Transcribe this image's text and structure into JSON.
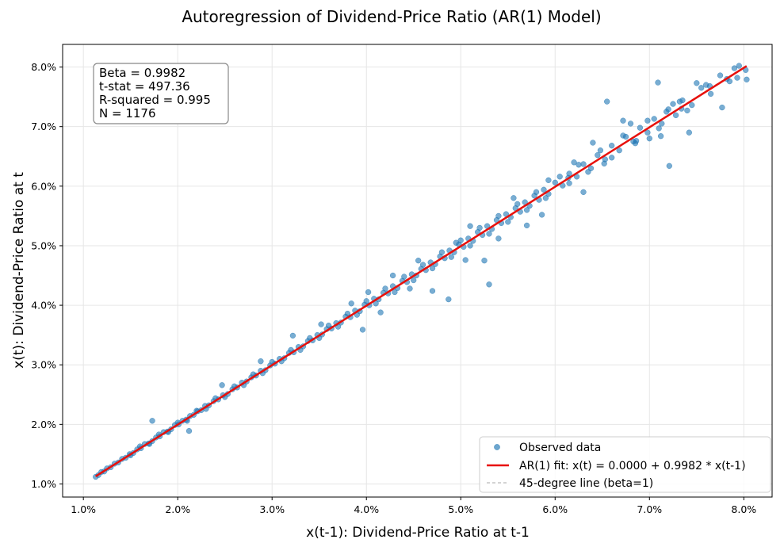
{
  "chart_data": {
    "type": "scatter",
    "title": "Autoregression of Dividend-Price Ratio (AR(1) Model)",
    "xlabel": "x(t-1): Dividend-Price Ratio at t-1",
    "ylabel": "x(t): Dividend-Price Ratio at t",
    "xlim": [
      0.0078,
      0.083
    ],
    "ylim": [
      0.0078,
      0.0838
    ],
    "xticks": [
      0.01,
      0.02,
      0.03,
      0.04,
      0.05,
      0.06,
      0.07,
      0.08
    ],
    "yticks": [
      0.01,
      0.02,
      0.03,
      0.04,
      0.05,
      0.06,
      0.07,
      0.08
    ],
    "xtick_labels": [
      "1.0%",
      "2.0%",
      "3.0%",
      "4.0%",
      "5.0%",
      "6.0%",
      "7.0%",
      "8.0%"
    ],
    "ytick_labels": [
      "1.0%",
      "2.0%",
      "3.0%",
      "4.0%",
      "5.0%",
      "6.0%",
      "7.0%",
      "8.0%"
    ],
    "grid": true,
    "stats": [
      "Beta = 0.9982",
      "t-stat = 497.36",
      "R-squared = 0.995",
      "N = 1176"
    ],
    "series": [
      {
        "name": "Observed data",
        "kind": "scatter",
        "color": "#1f77b4",
        "points": [
          [
            0.0113,
            0.0112
          ],
          [
            0.0116,
            0.0115
          ],
          [
            0.0119,
            0.012
          ],
          [
            0.0122,
            0.0121
          ],
          [
            0.0125,
            0.0126
          ],
          [
            0.0129,
            0.0128
          ],
          [
            0.0133,
            0.0134
          ],
          [
            0.0137,
            0.0136
          ],
          [
            0.0141,
            0.0142
          ],
          [
            0.0145,
            0.0144
          ],
          [
            0.0149,
            0.015
          ],
          [
            0.0153,
            0.0152
          ],
          [
            0.0157,
            0.0158
          ],
          [
            0.0161,
            0.016
          ],
          [
            0.0165,
            0.0167
          ],
          [
            0.0169,
            0.0168
          ],
          [
            0.0173,
            0.0172
          ],
          [
            0.0177,
            0.0178
          ],
          [
            0.0181,
            0.018
          ],
          [
            0.0185,
            0.0187
          ],
          [
            0.0189,
            0.0188
          ],
          [
            0.0193,
            0.0192
          ],
          [
            0.0197,
            0.0199
          ],
          [
            0.0201,
            0.02
          ],
          [
            0.0205,
            0.0206
          ],
          [
            0.0209,
            0.0208
          ],
          [
            0.0213,
            0.0214
          ],
          [
            0.0217,
            0.0216
          ],
          [
            0.0221,
            0.0222
          ],
          [
            0.0225,
            0.0224
          ],
          [
            0.0229,
            0.0231
          ],
          [
            0.0233,
            0.0232
          ],
          [
            0.0238,
            0.0239
          ],
          [
            0.0243,
            0.0242
          ],
          [
            0.0248,
            0.0249
          ],
          [
            0.0253,
            0.0251
          ],
          [
            0.0258,
            0.0259
          ],
          [
            0.0263,
            0.0262
          ],
          [
            0.0268,
            0.027
          ],
          [
            0.0273,
            0.0272
          ],
          [
            0.0278,
            0.0279
          ],
          [
            0.0283,
            0.0282
          ],
          [
            0.0288,
            0.029
          ],
          [
            0.0293,
            0.0291
          ],
          [
            0.0298,
            0.0299
          ],
          [
            0.0303,
            0.0302
          ],
          [
            0.0308,
            0.031
          ],
          [
            0.0313,
            0.0311
          ],
          [
            0.0318,
            0.032
          ],
          [
            0.0323,
            0.0321
          ],
          [
            0.0328,
            0.033
          ],
          [
            0.0333,
            0.0331
          ],
          [
            0.0338,
            0.034
          ],
          [
            0.0343,
            0.0341
          ],
          [
            0.0348,
            0.035
          ],
          [
            0.0353,
            0.0351
          ],
          [
            0.0358,
            0.036
          ],
          [
            0.0363,
            0.0361
          ],
          [
            0.0368,
            0.037
          ],
          [
            0.0373,
            0.0371
          ],
          [
            0.0378,
            0.0381
          ],
          [
            0.0383,
            0.038
          ],
          [
            0.0388,
            0.0391
          ],
          [
            0.0393,
            0.039
          ],
          [
            0.0398,
            0.0401
          ],
          [
            0.0403,
            0.04
          ],
          [
            0.0408,
            0.0411
          ],
          [
            0.0413,
            0.041
          ],
          [
            0.0418,
            0.0421
          ],
          [
            0.0423,
            0.042
          ],
          [
            0.0428,
            0.0432
          ],
          [
            0.0433,
            0.0429
          ],
          [
            0.0438,
            0.0441
          ],
          [
            0.0443,
            0.0439
          ],
          [
            0.0448,
            0.0452
          ],
          [
            0.0453,
            0.045
          ],
          [
            0.0458,
            0.0461
          ],
          [
            0.0463,
            0.0459
          ],
          [
            0.0468,
            0.0472
          ],
          [
            0.0473,
            0.0469
          ],
          [
            0.0478,
            0.0482
          ],
          [
            0.0483,
            0.0479
          ],
          [
            0.0488,
            0.0492
          ],
          [
            0.0493,
            0.0489
          ],
          [
            0.0498,
            0.0502
          ],
          [
            0.0503,
            0.0498
          ],
          [
            0.0508,
            0.0512
          ],
          [
            0.0513,
            0.0508
          ],
          [
            0.0518,
            0.0523
          ],
          [
            0.0523,
            0.0518
          ],
          [
            0.0528,
            0.0533
          ],
          [
            0.0533,
            0.0528
          ],
          [
            0.0538,
            0.0543
          ],
          [
            0.0543,
            0.0538
          ],
          [
            0.0548,
            0.0553
          ],
          [
            0.0553,
            0.0548
          ],
          [
            0.0558,
            0.0563
          ],
          [
            0.0563,
            0.0557
          ],
          [
            0.0568,
            0.0573
          ],
          [
            0.0573,
            0.0567
          ],
          [
            0.0578,
            0.0584
          ],
          [
            0.0583,
            0.0577
          ],
          [
            0.0588,
            0.0594
          ],
          [
            0.0593,
            0.0587
          ],
          [
            0.06,
            0.0606
          ],
          [
            0.0608,
            0.0601
          ],
          [
            0.0615,
            0.0621
          ],
          [
            0.0623,
            0.0616
          ],
          [
            0.063,
            0.0637
          ],
          [
            0.0638,
            0.063
          ],
          [
            0.0645,
            0.0652
          ],
          [
            0.0653,
            0.0645
          ],
          [
            0.066,
            0.0668
          ],
          [
            0.0668,
            0.066
          ],
          [
            0.0675,
            0.0683
          ],
          [
            0.0683,
            0.0675
          ],
          [
            0.069,
            0.0698
          ],
          [
            0.0698,
            0.069
          ],
          [
            0.0705,
            0.0713
          ],
          [
            0.0713,
            0.0705
          ],
          [
            0.072,
            0.0729
          ],
          [
            0.0728,
            0.0719
          ],
          [
            0.0735,
            0.0744
          ],
          [
            0.0745,
            0.0736
          ],
          [
            0.0755,
            0.0765
          ],
          [
            0.0765,
            0.0755
          ],
          [
            0.0775,
            0.0786
          ],
          [
            0.0785,
            0.0776
          ],
          [
            0.0795,
            0.0802
          ],
          [
            0.0802,
            0.0795
          ],
          [
            0.015,
            0.0148
          ],
          [
            0.016,
            0.0163
          ],
          [
            0.017,
            0.0167
          ],
          [
            0.018,
            0.0183
          ],
          [
            0.019,
            0.0187
          ],
          [
            0.02,
            0.0203
          ],
          [
            0.021,
            0.0206
          ],
          [
            0.022,
            0.0223
          ],
          [
            0.023,
            0.0226
          ],
          [
            0.024,
            0.0244
          ],
          [
            0.025,
            0.0246
          ],
          [
            0.026,
            0.0264
          ],
          [
            0.027,
            0.0266
          ],
          [
            0.028,
            0.0284
          ],
          [
            0.029,
            0.0286
          ],
          [
            0.03,
            0.0305
          ],
          [
            0.031,
            0.0306
          ],
          [
            0.032,
            0.0325
          ],
          [
            0.033,
            0.0325
          ],
          [
            0.034,
            0.0345
          ],
          [
            0.035,
            0.0345
          ],
          [
            0.036,
            0.0366
          ],
          [
            0.037,
            0.0364
          ],
          [
            0.038,
            0.0386
          ],
          [
            0.039,
            0.0384
          ],
          [
            0.04,
            0.0407
          ],
          [
            0.041,
            0.0403
          ],
          [
            0.042,
            0.0428
          ],
          [
            0.043,
            0.0422
          ],
          [
            0.044,
            0.0448
          ],
          [
            0.045,
            0.0442
          ],
          [
            0.046,
            0.0468
          ],
          [
            0.047,
            0.0462
          ],
          [
            0.048,
            0.0489
          ],
          [
            0.049,
            0.0481
          ],
          [
            0.05,
            0.0509
          ],
          [
            0.051,
            0.05
          ],
          [
            0.052,
            0.053
          ],
          [
            0.053,
            0.052
          ],
          [
            0.054,
            0.055
          ],
          [
            0.055,
            0.054
          ],
          [
            0.056,
            0.057
          ],
          [
            0.057,
            0.056
          ],
          [
            0.058,
            0.059
          ],
          [
            0.059,
            0.058
          ],
          [
            0.0605,
            0.0616
          ],
          [
            0.0615,
            0.0605
          ],
          [
            0.0625,
            0.0636
          ],
          [
            0.0635,
            0.0624
          ],
          [
            0.0648,
            0.066
          ],
          [
            0.066,
            0.0648
          ],
          [
            0.0672,
            0.0685
          ],
          [
            0.0685,
            0.0672
          ],
          [
            0.0698,
            0.071
          ],
          [
            0.071,
            0.0697
          ],
          [
            0.0725,
            0.0738
          ],
          [
            0.074,
            0.0727
          ],
          [
            0.076,
            0.077
          ],
          [
            0.079,
            0.0798
          ],
          [
            0.0173,
            0.0206
          ],
          [
            0.0212,
            0.0189
          ],
          [
            0.0247,
            0.0266
          ],
          [
            0.0288,
            0.0306
          ],
          [
            0.0322,
            0.0349
          ],
          [
            0.0352,
            0.0368
          ],
          [
            0.0384,
            0.0403
          ],
          [
            0.0396,
            0.0359
          ],
          [
            0.0402,
            0.0422
          ],
          [
            0.0415,
            0.0388
          ],
          [
            0.0428,
            0.045
          ],
          [
            0.0446,
            0.0428
          ],
          [
            0.0455,
            0.0475
          ],
          [
            0.047,
            0.0424
          ],
          [
            0.0487,
            0.041
          ],
          [
            0.0495,
            0.0505
          ],
          [
            0.0505,
            0.0476
          ],
          [
            0.051,
            0.0533
          ],
          [
            0.0525,
            0.0475
          ],
          [
            0.053,
            0.0435
          ],
          [
            0.054,
            0.0512
          ],
          [
            0.0556,
            0.058
          ],
          [
            0.057,
            0.0534
          ],
          [
            0.0586,
            0.0552
          ],
          [
            0.0593,
            0.061
          ],
          [
            0.0614,
            0.0614
          ],
          [
            0.062,
            0.064
          ],
          [
            0.063,
            0.059
          ],
          [
            0.064,
            0.0673
          ],
          [
            0.0652,
            0.0638
          ],
          [
            0.0655,
            0.0742
          ],
          [
            0.0672,
            0.071
          ],
          [
            0.068,
            0.0705
          ],
          [
            0.0686,
            0.0676
          ],
          [
            0.07,
            0.068
          ],
          [
            0.0709,
            0.0774
          ],
          [
            0.0712,
            0.0684
          ],
          [
            0.0718,
            0.0725
          ],
          [
            0.0721,
            0.0634
          ],
          [
            0.0732,
            0.0742
          ],
          [
            0.0734,
            0.073
          ],
          [
            0.0742,
            0.069
          ],
          [
            0.075,
            0.0773
          ],
          [
            0.0764,
            0.0768
          ],
          [
            0.0777,
            0.0732
          ],
          [
            0.0782,
            0.078
          ],
          [
            0.0793,
            0.0782
          ],
          [
            0.0803,
            0.0779
          ]
        ]
      },
      {
        "name": "AR(1) fit: x(t) = 0.0000 + 0.9982 * x(t-1)",
        "kind": "line",
        "color": "#e8100b",
        "x": [
          0.0113,
          0.0803
        ],
        "y": [
          0.01128,
          0.08016
        ]
      },
      {
        "name": "45-degree line (beta=1)",
        "kind": "dashed-line",
        "color": "#a9a9a9",
        "x": [
          0.0113,
          0.0803
        ],
        "y": [
          0.0113,
          0.0803
        ]
      }
    ],
    "legend_position": "lower-right"
  }
}
